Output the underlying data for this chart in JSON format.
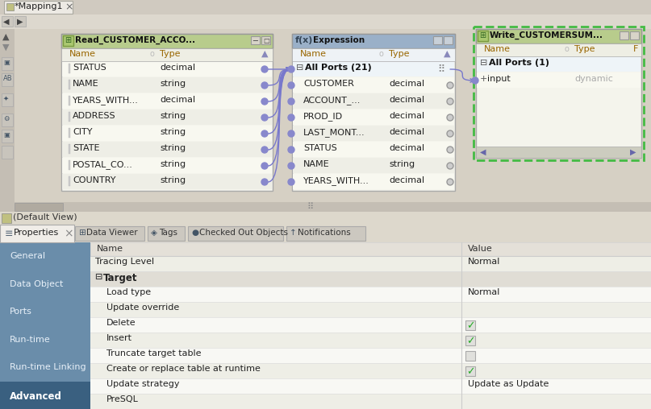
{
  "title_tab": "*Mapping1",
  "bg_main": "#dfd9cc",
  "bg_canvas": "#d6d0c4",
  "read_title": "Read_CUSTOMER_ACCO...",
  "read_header_bg": "#b8cc8c",
  "read_rows": [
    [
      "STATUS",
      "decimal"
    ],
    [
      "NAME",
      "string"
    ],
    [
      "YEARS_WITH...",
      "decimal"
    ],
    [
      "ADDRESS",
      "string"
    ],
    [
      "CITY",
      "string"
    ],
    [
      "STATE",
      "string"
    ],
    [
      "POSTAL_CO...",
      "string"
    ],
    [
      "COUNTRY",
      "string"
    ]
  ],
  "expr_title": "Expression",
  "expr_header_bg": "#9ab0c8",
  "expr_rows": [
    [
      "All Ports (21)",
      "",
      true
    ],
    [
      "CUSTOMER",
      "decimal",
      false
    ],
    [
      "ACCOUNT_...",
      "decimal",
      false
    ],
    [
      "PROD_ID",
      "decimal",
      false
    ],
    [
      "LAST_MONT...",
      "decimal",
      false
    ],
    [
      "STATUS",
      "decimal",
      false
    ],
    [
      "NAME",
      "string",
      false
    ],
    [
      "YEARS_WITH...",
      "decimal",
      false
    ]
  ],
  "write_title": "Write_CUSTOMERSUM...",
  "write_header_bg": "#b8cc8c",
  "sidebar_items": [
    "General",
    "Data Object",
    "Ports",
    "Run-time",
    "Run-time Linking",
    "Advanced"
  ],
  "sidebar_active": "Advanced",
  "sidebar_bg": "#6a8daa",
  "sidebar_active_bg": "#3a6080",
  "sidebar_text": "#e8f0f8",
  "props_header": [
    "Name",
    "Value"
  ],
  "props_rows": [
    {
      "name": "Tracing Level",
      "value": "Normal",
      "indent": 0,
      "alt": true,
      "checkbox": null,
      "section": false
    },
    {
      "name": "Target",
      "value": "",
      "indent": 0,
      "alt": false,
      "checkbox": null,
      "section": true
    },
    {
      "name": "Load type",
      "value": "Normal",
      "indent": 1,
      "alt": false,
      "checkbox": null,
      "section": false
    },
    {
      "name": "Update override",
      "value": "",
      "indent": 1,
      "alt": true,
      "checkbox": null,
      "section": false
    },
    {
      "name": "Delete",
      "value": "",
      "indent": 1,
      "alt": false,
      "checkbox": true,
      "section": false
    },
    {
      "name": "Insert",
      "value": "",
      "indent": 1,
      "alt": true,
      "checkbox": true,
      "section": false
    },
    {
      "name": "Truncate target table",
      "value": "",
      "indent": 1,
      "alt": false,
      "checkbox": false,
      "section": false
    },
    {
      "name": "Create or replace table at runtime",
      "value": "",
      "indent": 1,
      "alt": true,
      "checkbox": true,
      "section": false
    },
    {
      "name": "Update strategy",
      "value": "Update as Update",
      "indent": 1,
      "alt": false,
      "checkbox": null,
      "section": false
    },
    {
      "name": "PreSQL",
      "value": "",
      "indent": 1,
      "alt": true,
      "checkbox": null,
      "section": false
    }
  ],
  "default_view_text": "(Default View)",
  "line_color": "#7878cc",
  "check_color": "#22aa22"
}
